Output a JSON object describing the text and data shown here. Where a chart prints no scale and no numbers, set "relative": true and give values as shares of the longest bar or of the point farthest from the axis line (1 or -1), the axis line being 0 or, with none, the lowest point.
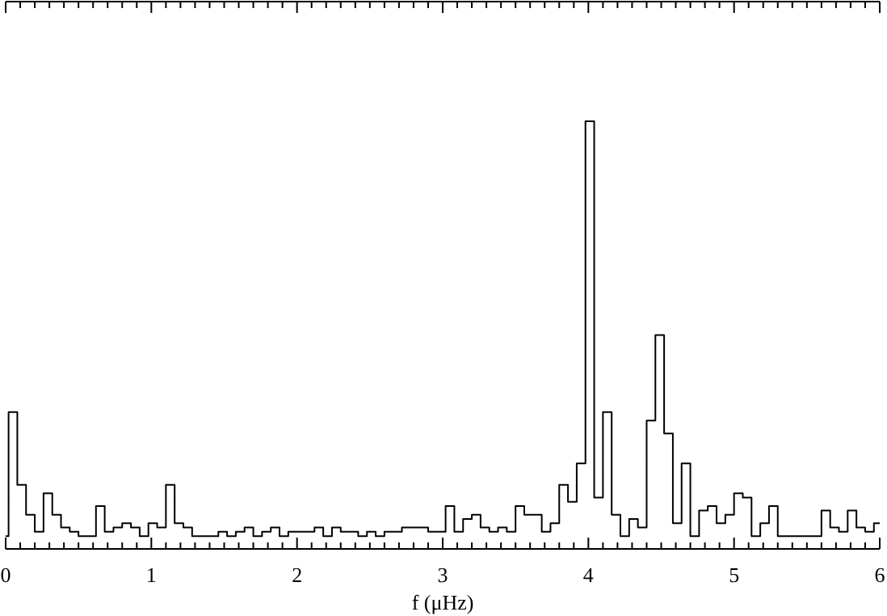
{
  "chart_data": {
    "type": "step",
    "relative": true,
    "xlabel": "f (μHz)",
    "color": "#000000",
    "x": [
      0,
      0.02,
      0.08,
      0.14,
      0.2,
      0.26,
      0.32,
      0.38,
      0.44,
      0.5,
      0.56,
      0.62,
      0.68,
      0.74,
      0.8,
      0.86,
      0.92,
      0.98,
      1.04,
      1.1,
      1.16,
      1.22,
      1.28,
      1.34,
      1.4,
      1.46,
      1.52,
      1.58,
      1.64,
      1.7,
      1.76,
      1.82,
      1.88,
      1.94,
      2,
      2.06,
      2.12,
      2.18,
      2.24,
      2.3,
      2.36,
      2.42,
      2.48,
      2.54,
      2.6,
      2.66,
      2.72,
      2.78,
      2.84,
      2.9,
      2.96,
      3.02,
      3.08,
      3.14,
      3.2,
      3.26,
      3.32,
      3.38,
      3.44,
      3.5,
      3.56,
      3.62,
      3.68,
      3.74,
      3.8,
      3.86,
      3.92,
      3.98,
      4.04,
      4.1,
      4.16,
      4.22,
      4.28,
      4.34,
      4.4,
      4.46,
      4.52,
      4.58,
      4.64,
      4.7,
      4.76,
      4.82,
      4.88,
      4.94,
      5,
      5.06,
      5.12,
      5.18,
      5.24,
      5.3,
      5.36,
      5.42,
      5.48,
      5.54,
      5.6,
      5.66,
      5.72,
      5.78,
      5.84,
      5.9,
      5.96,
      6
    ],
    "values": [
      0.03,
      0.32,
      0.15,
      0.08,
      0.04,
      0.13,
      0.08,
      0.05,
      0.04,
      0.03,
      0.03,
      0.1,
      0.04,
      0.05,
      0.06,
      0.05,
      0.03,
      0.06,
      0.05,
      0.15,
      0.06,
      0.05,
      0.03,
      0.03,
      0.03,
      0.04,
      0.03,
      0.04,
      0.05,
      0.03,
      0.04,
      0.05,
      0.03,
      0.04,
      0.04,
      0.04,
      0.05,
      0.03,
      0.05,
      0.04,
      0.04,
      0.03,
      0.04,
      0.03,
      0.04,
      0.04,
      0.05,
      0.05,
      0.05,
      0.04,
      0.04,
      0.1,
      0.04,
      0.07,
      0.08,
      0.05,
      0.04,
      0.05,
      0.04,
      0.1,
      0.08,
      0.08,
      0.04,
      0.06,
      0.15,
      0.11,
      0.2,
      1,
      0.12,
      0.32,
      0.08,
      0.03,
      0.07,
      0.05,
      0.3,
      0.5,
      0.27,
      0.06,
      0.2,
      0.03,
      0.09,
      0.1,
      0.06,
      0.08,
      0.13,
      0.12,
      0.03,
      0.06,
      0.1,
      0.03,
      0.03,
      0.03,
      0.03,
      0.03,
      0.09,
      0.05,
      0.04,
      0.09,
      0.05,
      0.04,
      0.06,
      0.06
    ],
    "xlim": [
      0,
      6
    ],
    "xticks": [
      0,
      {
        "value": 0.1,
        "label": null
      },
      {
        "value": 0.2,
        "label": null
      },
      {
        "value": 0.3,
        "label": null
      },
      {
        "value": 0.4,
        "label": null
      },
      {
        "value": 0.5,
        "label": null
      },
      {
        "value": 0.6,
        "label": null
      },
      {
        "value": 0.7,
        "label": null
      },
      {
        "value": 0.8,
        "label": null
      },
      {
        "value": 0.9,
        "label": null
      },
      1,
      {
        "value": 1.1,
        "label": null
      },
      {
        "value": 1.2,
        "label": null
      },
      {
        "value": 1.3,
        "label": null
      },
      {
        "value": 1.4,
        "label": null
      },
      {
        "value": 1.5,
        "label": null
      },
      {
        "value": 1.6,
        "label": null
      },
      {
        "value": 1.7,
        "label": null
      },
      {
        "value": 1.8,
        "label": null
      },
      {
        "value": 1.9,
        "label": null
      },
      2,
      {
        "value": 2.1,
        "label": null
      },
      {
        "value": 2.2,
        "label": null
      },
      {
        "value": 2.3,
        "label": null
      },
      {
        "value": 2.4,
        "label": null
      },
      {
        "value": 2.5,
        "label": null
      },
      {
        "value": 2.6,
        "label": null
      },
      {
        "value": 2.7,
        "label": null
      },
      {
        "value": 2.8,
        "label": null
      },
      {
        "value": 2.9,
        "label": null
      },
      3,
      {
        "value": 3.1,
        "label": null
      },
      {
        "value": 3.2,
        "label": null
      },
      {
        "value": 3.3,
        "label": null
      },
      {
        "value": 3.4,
        "label": null
      },
      {
        "value": 3.5,
        "label": null
      },
      {
        "value": 3.6,
        "label": null
      },
      {
        "value": 3.7,
        "label": null
      },
      {
        "value": 3.8,
        "label": null
      },
      {
        "value": 3.9,
        "label": null
      },
      4,
      {
        "value": 4.1,
        "label": null
      },
      {
        "value": 4.2,
        "label": null
      },
      {
        "value": 4.3,
        "label": null
      },
      {
        "value": 4.4,
        "label": null
      },
      {
        "value": 4.5,
        "label": null
      },
      {
        "value": 4.6,
        "label": null
      },
      {
        "value": 4.7,
        "label": null
      },
      {
        "value": 4.8,
        "label": null
      },
      {
        "value": 4.9,
        "label": null
      },
      5,
      {
        "value": 5.1,
        "label": null
      },
      {
        "value": 5.2,
        "label": null
      },
      {
        "value": 5.3,
        "label": null
      },
      {
        "value": 5.4,
        "label": null
      },
      {
        "value": 5.5,
        "label": null
      },
      {
        "value": 5.6,
        "label": null
      },
      {
        "value": 5.7,
        "label": null
      },
      {
        "value": 5.8,
        "label": null
      },
      {
        "value": 5.9,
        "label": null
      },
      6
    ],
    "tick_labels": "x"
  }
}
